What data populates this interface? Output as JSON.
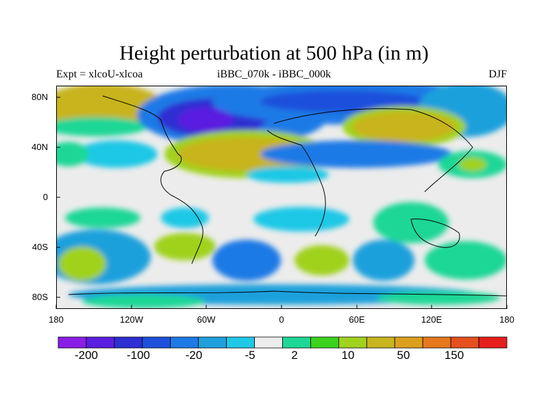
{
  "title": "Height perturbation at 500 hPa (in m)",
  "left_label": "Expt = xlcoU-xlcoa",
  "center_label": "iBBC_070k - iBBC_000k",
  "right_label": "DJF",
  "y_axis": {
    "ticks": [
      "80N",
      "40N",
      "0",
      "40S",
      "80S"
    ],
    "tick_values": [
      80,
      40,
      0,
      -40,
      -80
    ],
    "range": [
      -90,
      90
    ]
  },
  "x_axis": {
    "ticks": [
      "180",
      "120W",
      "60W",
      "0",
      "60E",
      "120E",
      "180"
    ],
    "tick_values": [
      -180,
      -120,
      -60,
      0,
      60,
      120,
      180
    ],
    "range": [
      -180,
      180
    ]
  },
  "colorbar": {
    "colors": [
      "#8a1ee6",
      "#5a1ee0",
      "#2e2ed2",
      "#1e50dc",
      "#1e7ae6",
      "#1ea0dc",
      "#1ec8e6",
      "#ececec",
      "#1ed796",
      "#3cd21e",
      "#a0d21e",
      "#c8b41e",
      "#dca01e",
      "#e6781e",
      "#e6501e",
      "#e61e1e"
    ],
    "labels": [
      "-200",
      "-100",
      "-20",
      "-5",
      "2",
      "10",
      "50",
      "150"
    ]
  },
  "colors": {
    "neutral": "#ececec",
    "coast": "#000000"
  }
}
